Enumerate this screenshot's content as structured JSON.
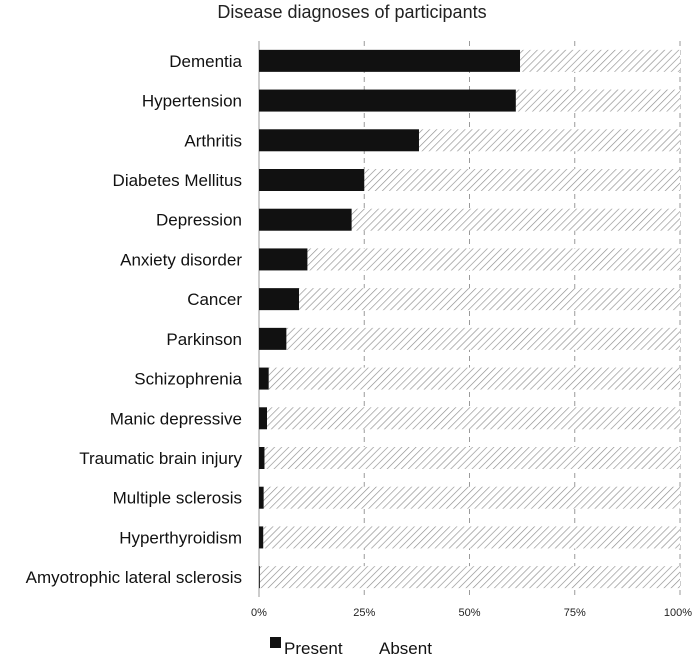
{
  "chart_data": {
    "type": "bar",
    "stacked": true,
    "orientation": "horizontal",
    "title": "Disease diagnoses of participants",
    "xlabel": "",
    "ylabel": "",
    "xlim": [
      0,
      100
    ],
    "x_ticks": [
      "0%",
      "25%",
      "50%",
      "75%",
      "100%"
    ],
    "grid": "vertical dashed",
    "categories": [
      "Dementia",
      "Hypertension",
      "Arthritis",
      "Diabetes Mellitus",
      "Depression",
      "Anxiety disorder",
      "Cancer",
      "Parkinson",
      "Schizophrenia",
      "Manic depressive",
      "Traumatic brain injury",
      "Multiple sclerosis",
      "Hyperthyroidism",
      "Amyotrophic lateral sclerosis"
    ],
    "series": [
      {
        "name": "Present",
        "color": "#111111",
        "pattern": "solid",
        "values": [
          62,
          61,
          38,
          25,
          22,
          11.5,
          9.5,
          6.5,
          2.3,
          1.9,
          1.3,
          1.1,
          1.0,
          0.2
        ]
      },
      {
        "name": "Absent",
        "color": "#9a9a9a",
        "pattern": "diagonal-hatch",
        "values": [
          38,
          39,
          62,
          75,
          78,
          88.5,
          90.5,
          93.5,
          97.7,
          98.1,
          98.7,
          98.9,
          99.0,
          99.8
        ]
      }
    ],
    "legend": {
      "position": "bottom-center",
      "labels": [
        "Present",
        "Absent"
      ]
    }
  }
}
